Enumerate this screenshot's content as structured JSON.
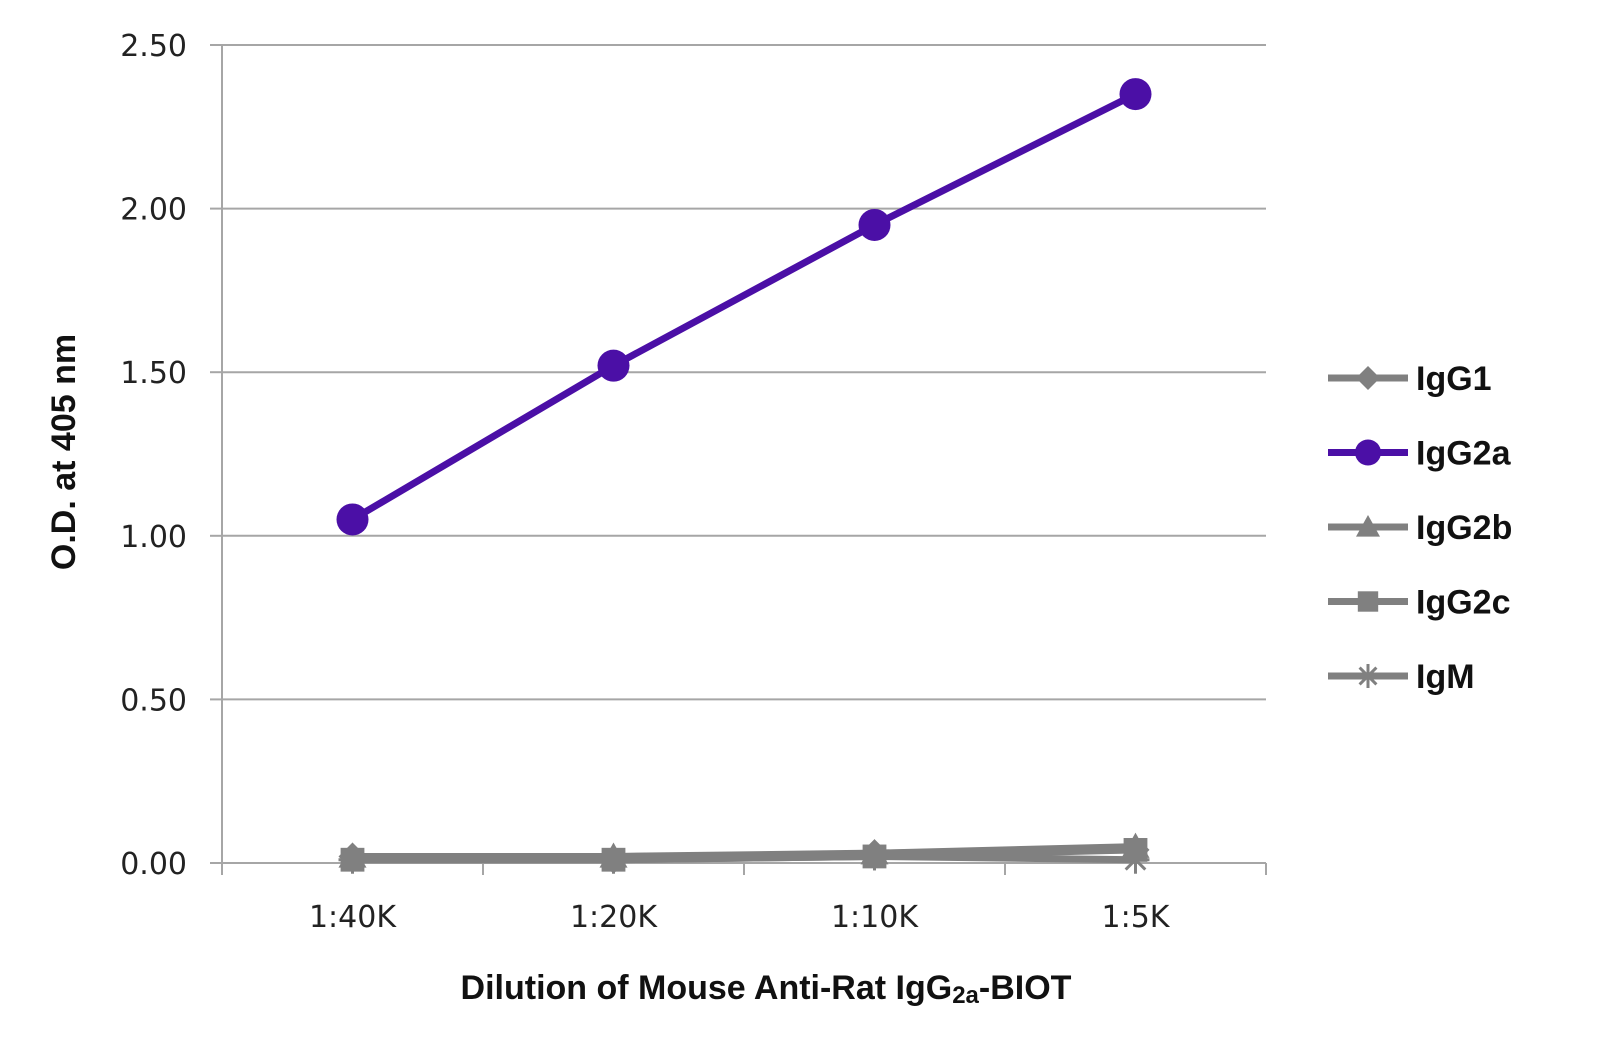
{
  "chart_data": {
    "type": "line",
    "categories": [
      "1:40K",
      "1:20K",
      "1:10K",
      "1:5K"
    ],
    "xlabel_main": "Dilution of Mouse Anti-Rat IgG",
    "xlabel_sub": "2a",
    "xlabel_suffix": "-BIOT",
    "ylabel": "O.D. at 405 nm",
    "ylim": [
      0,
      2.5
    ],
    "yticks": [
      "0.00",
      "0.50",
      "1.00",
      "1.50",
      "2.00",
      "2.50"
    ],
    "ytick_values": [
      0,
      0.5,
      1.0,
      1.5,
      2.0,
      2.5
    ],
    "grid": true,
    "legend_position": "right",
    "series": [
      {
        "name": "IgG1",
        "values": [
          0.02,
          0.01,
          0.03,
          0.04
        ],
        "color": "#808080",
        "marker": "diamond"
      },
      {
        "name": "IgG2a",
        "values": [
          1.05,
          1.52,
          1.95,
          2.35
        ],
        "color": "#4b0fa6",
        "marker": "circle"
      },
      {
        "name": "IgG2b",
        "values": [
          0.02,
          0.02,
          0.03,
          0.05
        ],
        "color": "#808080",
        "marker": "triangle"
      },
      {
        "name": "IgG2c",
        "values": [
          0.01,
          0.01,
          0.02,
          0.04
        ],
        "color": "#808080",
        "marker": "square"
      },
      {
        "name": "IgM",
        "values": [
          0.01,
          0.01,
          0.02,
          0.01
        ],
        "color": "#808080",
        "marker": "star"
      }
    ]
  }
}
